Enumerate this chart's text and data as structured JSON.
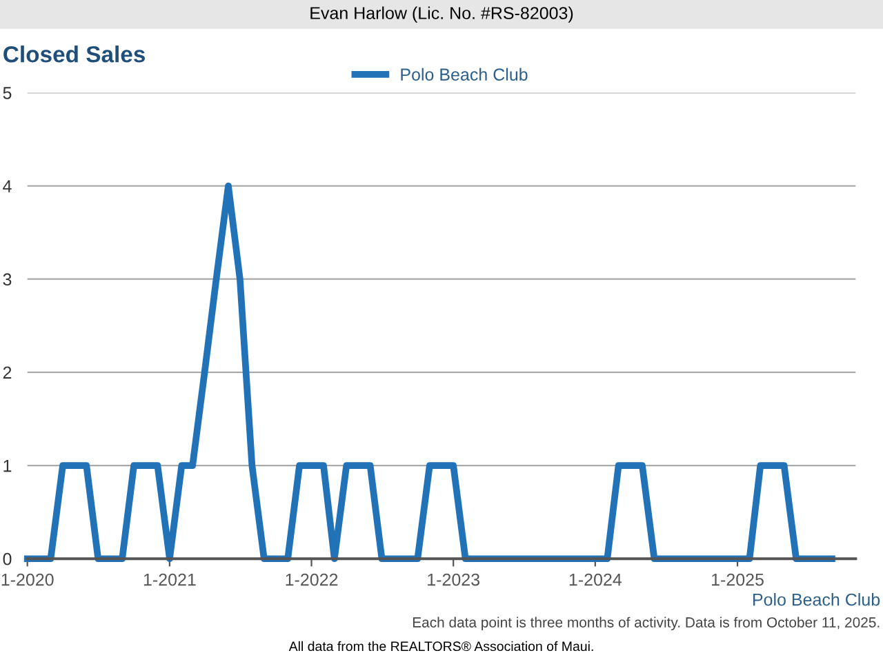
{
  "chart_data": {
    "type": "line",
    "title": "Closed Sales",
    "x": [
      "2020-01",
      "2020-02",
      "2020-03",
      "2020-04",
      "2020-05",
      "2020-06",
      "2020-07",
      "2020-08",
      "2020-09",
      "2020-10",
      "2020-11",
      "2020-12",
      "2021-01",
      "2021-02",
      "2021-03",
      "2021-04",
      "2021-05",
      "2021-06",
      "2021-07",
      "2021-08",
      "2021-09",
      "2021-10",
      "2021-11",
      "2021-12",
      "2022-01",
      "2022-02",
      "2022-03",
      "2022-04",
      "2022-05",
      "2022-06",
      "2022-07",
      "2022-08",
      "2022-09",
      "2022-10",
      "2022-11",
      "2022-12",
      "2023-01",
      "2023-02",
      "2023-03",
      "2023-04",
      "2023-05",
      "2023-06",
      "2023-07",
      "2023-08",
      "2023-09",
      "2023-10",
      "2023-11",
      "2023-12",
      "2024-01",
      "2024-02",
      "2024-03",
      "2024-04",
      "2024-05",
      "2024-06",
      "2024-07",
      "2024-08",
      "2024-09",
      "2024-10",
      "2024-11",
      "2024-12",
      "2025-01",
      "2025-02",
      "2025-03",
      "2025-04",
      "2025-05",
      "2025-06",
      "2025-07",
      "2025-08",
      "2025-09"
    ],
    "series": [
      {
        "name": "Polo Beach Club",
        "color": "#2272b8",
        "values": [
          0,
          0,
          0,
          1,
          1,
          1,
          0,
          0,
          0,
          1,
          1,
          1,
          0,
          1,
          1,
          2,
          3,
          4,
          3,
          1,
          0,
          0,
          0,
          1,
          1,
          1,
          0,
          1,
          1,
          1,
          0,
          0,
          0,
          0,
          1,
          1,
          1,
          0,
          0,
          0,
          0,
          0,
          0,
          0,
          0,
          0,
          0,
          0,
          0,
          0,
          1,
          1,
          1,
          0,
          0,
          0,
          0,
          0,
          0,
          0,
          0,
          0,
          1,
          1,
          1,
          0,
          0,
          0,
          0
        ]
      }
    ],
    "xlim": [
      "2020-01",
      "2025-11"
    ],
    "xticks": [
      {
        "value": "2020-01",
        "label": "1-2020"
      },
      {
        "value": "2021-01",
        "label": "1-2021"
      },
      {
        "value": "2022-01",
        "label": "1-2022"
      },
      {
        "value": "2023-01",
        "label": "1-2023"
      },
      {
        "value": "2024-01",
        "label": "1-2024"
      },
      {
        "value": "2025-01",
        "label": "1-2025"
      }
    ],
    "ylim": [
      0,
      5
    ],
    "yticks": [
      0,
      1,
      2,
      3,
      4,
      5
    ],
    "grid": "y",
    "legend": "top",
    "marker": "none",
    "line_style": "solid",
    "annotations": [
      "Evan Harlow (Lic. No. #RS-82003)",
      "Polo Beach Club",
      "Each data point is three months of activity. Data is from October 11, 2025.",
      "All data from the REALTORS® Association of Maui."
    ]
  }
}
